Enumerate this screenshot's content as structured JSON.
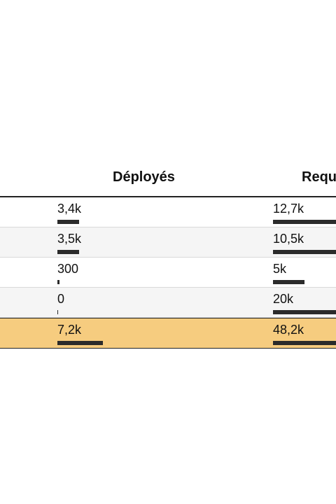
{
  "chart_data": {
    "type": "table",
    "columns": [
      "Déployés",
      "Requ"
    ],
    "rows": [
      {
        "label": "",
        "values": [
          3400,
          12700
        ],
        "display": [
          "3,4k",
          "12,7k"
        ]
      },
      {
        "label": "",
        "values": [
          3500,
          10500
        ],
        "display": [
          "3,5k",
          "10,5k"
        ]
      },
      {
        "label": "",
        "values": [
          300,
          5000
        ],
        "display": [
          "300",
          "5k"
        ]
      },
      {
        "label": "",
        "values": [
          0,
          20000
        ],
        "display": [
          "0",
          "20k"
        ]
      },
      {
        "label": "",
        "values": [
          7200,
          48200
        ],
        "display": [
          "7,2k",
          "48,2k"
        ],
        "is_total": true
      }
    ],
    "bar_max": [
      20000,
      20000
    ],
    "colors": {
      "bar": "#2b2b2b",
      "total_row": "#f6cc7f",
      "alt_row": "#f5f5f5"
    }
  }
}
